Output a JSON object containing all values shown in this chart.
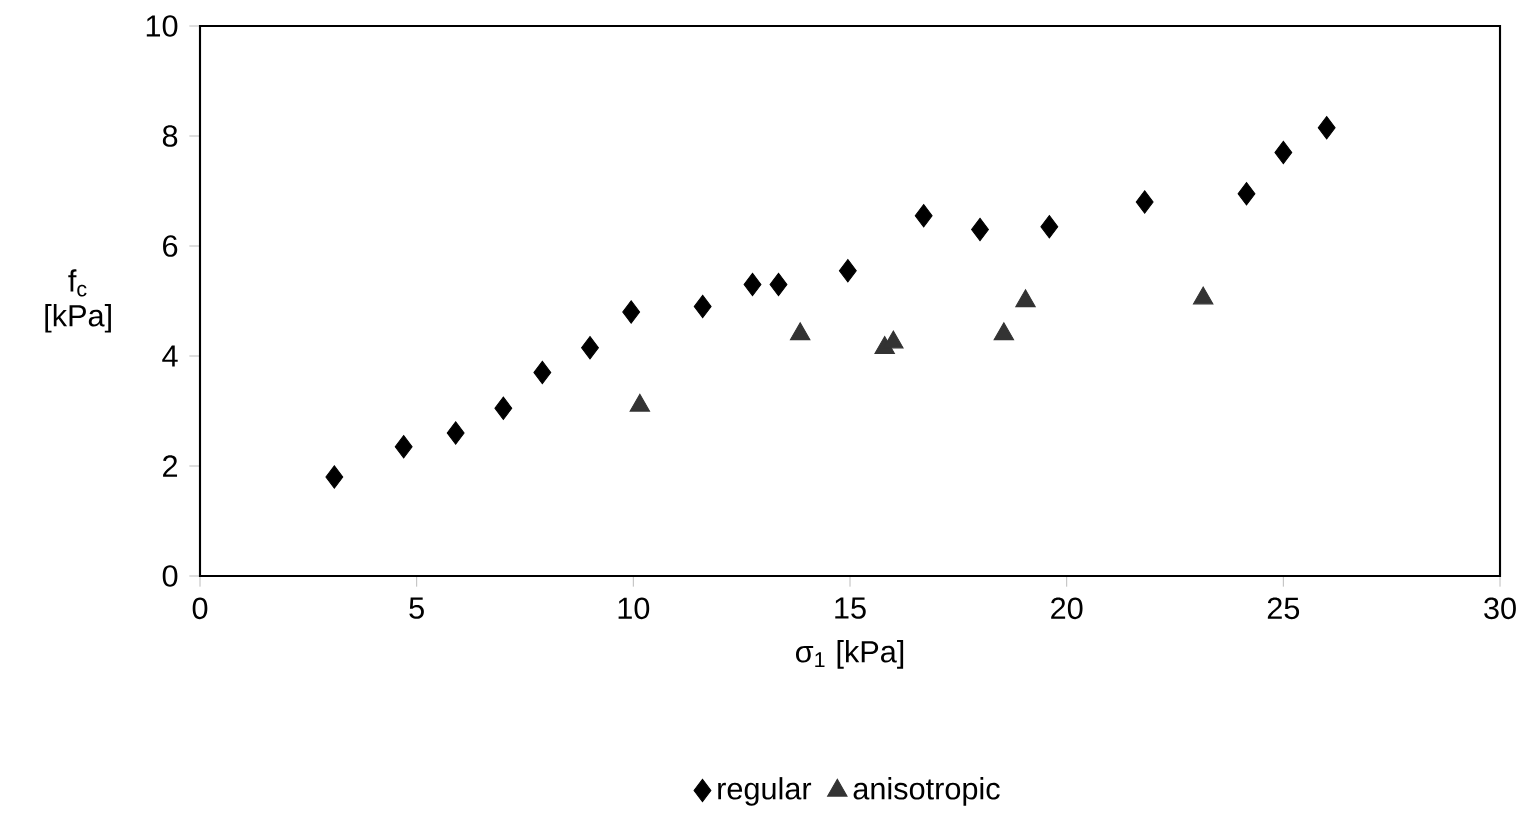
{
  "chart_data": {
    "type": "scatter",
    "xlabel": "σ$_{1}$ [kPa]",
    "ylabel": "f$_{c}$ [kPa]",
    "xlim": [
      0,
      30
    ],
    "ylim": [
      0,
      10
    ],
    "xticks": [
      0,
      5,
      10,
      15,
      20,
      25,
      30
    ],
    "yticks": [
      0,
      2,
      4,
      6,
      8,
      10
    ],
    "grid": false,
    "legend": "bottom",
    "series": [
      {
        "name": "regular",
        "color": "#000000",
        "marker": "diamond",
        "x": [
          3.1,
          4.7,
          5.9,
          7.0,
          7.9,
          9.0,
          9.95,
          11.6,
          12.75,
          13.35,
          14.95,
          16.7,
          18.0,
          19.6,
          21.8,
          24.15,
          25.0,
          26.0
        ],
        "values": [
          1.8,
          2.35,
          2.6,
          3.05,
          3.7,
          4.15,
          4.8,
          4.9,
          5.3,
          5.3,
          5.55,
          6.55,
          6.3,
          6.35,
          6.8,
          6.95,
          7.7,
          8.15
        ]
      },
      {
        "name": "anisotropic",
        "color": "#333333",
        "marker": "triangle",
        "x": [
          10.15,
          13.85,
          15.8,
          16.0,
          18.55,
          19.05,
          23.15
        ],
        "values": [
          3.1,
          4.4,
          4.15,
          4.25,
          4.4,
          5.0,
          5.05
        ]
      }
    ]
  }
}
